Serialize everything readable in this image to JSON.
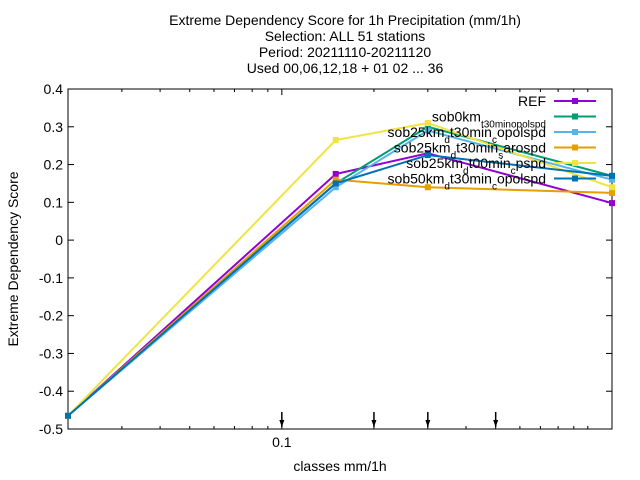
{
  "chart_data": {
    "type": "line",
    "title_lines": [
      "Extreme Dependency Score  for 1h Precipitation (mm/1h)",
      "Selection: ALL     51 stations",
      "Period: 20211110-20211120",
      "Used 00,06,12,18 + 01 02 ... 36"
    ],
    "xlabel": "classes mm/1h",
    "ylabel": "Extreme Dependency Score",
    "xscale": "log",
    "xlim": [
      0.02,
      1.2
    ],
    "ylim": [
      -0.5,
      0.4
    ],
    "xticks": [
      {
        "value": 0.1,
        "label": "0.1"
      }
    ],
    "yticks": [
      {
        "value": 0.4,
        "label": "0.4"
      },
      {
        "value": 0.3,
        "label": "0.3"
      },
      {
        "value": 0.2,
        "label": "0.2"
      },
      {
        "value": 0.1,
        "label": "0.1"
      },
      {
        "value": 0,
        "label": "0"
      },
      {
        "value": -0.1,
        "label": "-0.1"
      },
      {
        "value": -0.2,
        "label": "-0.2"
      },
      {
        "value": -0.3,
        "label": "-0.3"
      },
      {
        "value": -0.4,
        "label": "-0.4"
      },
      {
        "value": -0.5,
        "label": "-0.5"
      }
    ],
    "class_markers": [
      0.1,
      0.2,
      0.3,
      0.5
    ],
    "legend_position": "top-right",
    "grid": false,
    "x": [
      0.02,
      0.15,
      0.3,
      1.2
    ],
    "series": [
      {
        "name": "REF",
        "name_parts": [
          [
            "REF",
            ""
          ]
        ],
        "color": "#9400d3",
        "values": [
          -0.465,
          0.175,
          0.23,
          0.098
        ]
      },
      {
        "name": "sob0km_t30min_opolspd",
        "name_parts": [
          [
            "sob0km",
            ""
          ],
          [
            "t30min",
            "sub"
          ],
          [
            "opolspd",
            "sub"
          ]
        ],
        "color": "#009e73",
        "values": [
          -0.465,
          0.15,
          0.3,
          0.17
        ]
      },
      {
        "name": "sob25km_d_t30min_c_opolspd",
        "name_parts": [
          [
            "sob25km",
            ""
          ],
          [
            "d",
            "sub"
          ],
          [
            "t30min",
            ""
          ],
          [
            "c",
            "sub"
          ],
          [
            "opolspd",
            ""
          ]
        ],
        "color": "#56b4e9",
        "values": [
          -0.465,
          0.14,
          0.29,
          0.16
        ]
      },
      {
        "name": "sob25km_d_t30min_s_arospd",
        "name_parts": [
          [
            "sob25km",
            ""
          ],
          [
            "d",
            "sub"
          ],
          [
            "t30min",
            ""
          ],
          [
            "s",
            "sub"
          ],
          [
            "arospd",
            ""
          ]
        ],
        "color": "#e69f00",
        "values": [
          -0.465,
          0.16,
          0.14,
          0.125
        ]
      },
      {
        "name": "sob25km_d_t00min_c_pspd",
        "name_parts": [
          [
            "sob25km",
            ""
          ],
          [
            "d",
            "sub"
          ],
          [
            "t00min",
            ""
          ],
          [
            "c",
            "sub"
          ],
          [
            "pspd",
            ""
          ]
        ],
        "color": "#f0e442",
        "values": [
          -0.465,
          0.265,
          0.31,
          0.14
        ]
      },
      {
        "name": "sob50km_d_t30min_c_opolspd",
        "name_parts": [
          [
            "sob50km",
            ""
          ],
          [
            "d",
            "sub"
          ],
          [
            "t30min",
            ""
          ],
          [
            "c",
            "sub"
          ],
          [
            "opolspd",
            ""
          ]
        ],
        "color": "#0072b2",
        "values": [
          -0.465,
          0.15,
          0.225,
          0.17
        ]
      }
    ]
  }
}
